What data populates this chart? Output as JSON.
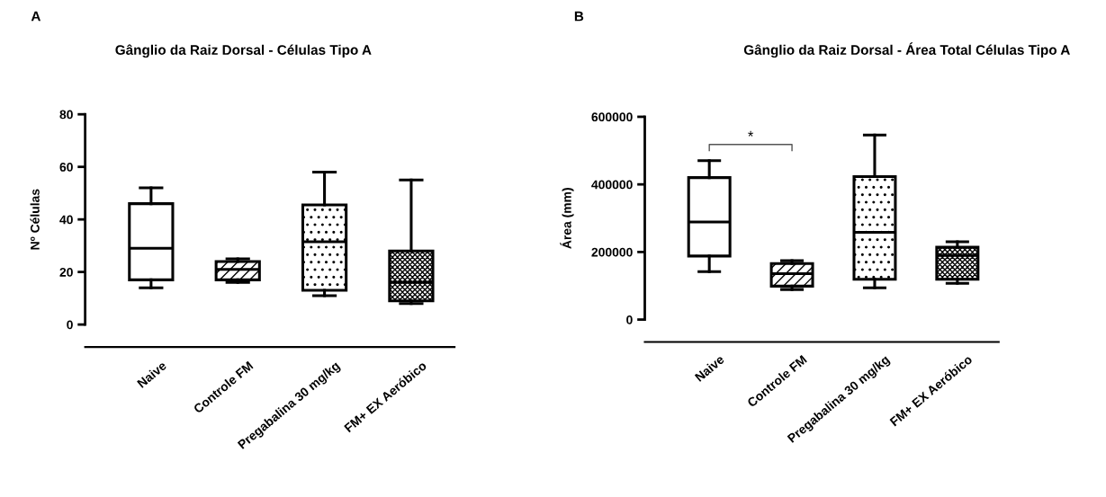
{
  "chart_data": [
    {
      "type": "box",
      "title": "Gânglio da Raiz Dorsal - Células Tipo A",
      "ylabel": "Nº Células",
      "categories": [
        "Naive",
        "Controle FM",
        "Pregabalina 30 mg/kg",
        "FM+ EX Aeróbico"
      ],
      "series": [
        {
          "color": "#000000",
          "boxes": [
            {
              "low": 14,
              "q1": 17,
              "median": 29,
              "q3": 46,
              "high": 52
            },
            {
              "low": 16,
              "q1": 17,
              "median": 21,
              "q3": 24,
              "high": 25
            },
            {
              "low": 11,
              "q1": 13,
              "median": 31.5,
              "q3": 45.5,
              "high": 58
            },
            {
              "low": 8,
              "q1": 9,
              "median": 16,
              "q3": 28,
              "high": 55
            }
          ]
        }
      ],
      "ylim": [
        0,
        80
      ],
      "yticks": [
        0,
        20,
        40,
        60,
        80
      ],
      "grid": false,
      "annotations": [
        "A"
      ]
    },
    {
      "type": "box",
      "title": "Gânglio da Raiz Dorsal - Área Total Células Tipo A",
      "ylabel": "Área (mm)",
      "categories": [
        "Naive",
        "Controle FM",
        "Pregabalina 30 mg/kg",
        "FM+ EX Aeróbico"
      ],
      "series": [
        {
          "color": "#000000",
          "boxes": [
            {
              "low": 142000,
              "q1": 188000,
              "median": 289000,
              "q3": 420000,
              "high": 470000
            },
            {
              "low": 89000,
              "q1": 99000,
              "median": 136000,
              "q3": 166000,
              "high": 174000
            },
            {
              "low": 94000,
              "q1": 119000,
              "median": 258000,
              "q3": 423000,
              "high": 546000
            },
            {
              "low": 107000,
              "q1": 119000,
              "median": 190000,
              "q3": 214000,
              "high": 230000
            }
          ]
        }
      ],
      "ylim": [
        0,
        600000
      ],
      "yticks": [
        0,
        200000,
        400000,
        600000
      ],
      "grid": false,
      "annotations": [
        "B",
        "*"
      ]
    }
  ]
}
